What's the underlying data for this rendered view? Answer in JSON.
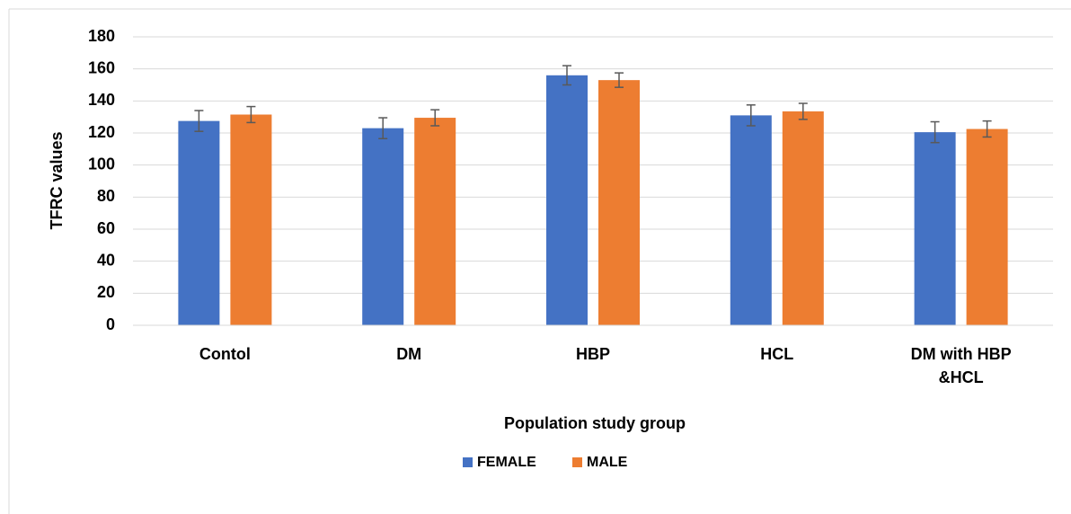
{
  "chart_data": {
    "type": "bar",
    "x_label": "Population study group",
    "y_label": "TFRC values",
    "categories": [
      "Contol",
      "DM",
      "HBP",
      "HCL",
      "DM with HBP &HCL"
    ],
    "series": [
      {
        "name": "FEMALE",
        "color": "#4472c4",
        "values": [
          127.5,
          123,
          156,
          131,
          120.5
        ],
        "errors": [
          6.5,
          6.5,
          6,
          6.5,
          6.5
        ]
      },
      {
        "name": "MALE",
        "color": "#ed7d31",
        "values": [
          131.5,
          129.5,
          153,
          133.5,
          122.5
        ],
        "errors": [
          5,
          5,
          4.5,
          5,
          5
        ]
      }
    ],
    "ylim": [
      0,
      180
    ],
    "yticks": [
      0,
      20,
      40,
      60,
      80,
      100,
      120,
      140,
      160,
      180
    ],
    "grid": true
  }
}
